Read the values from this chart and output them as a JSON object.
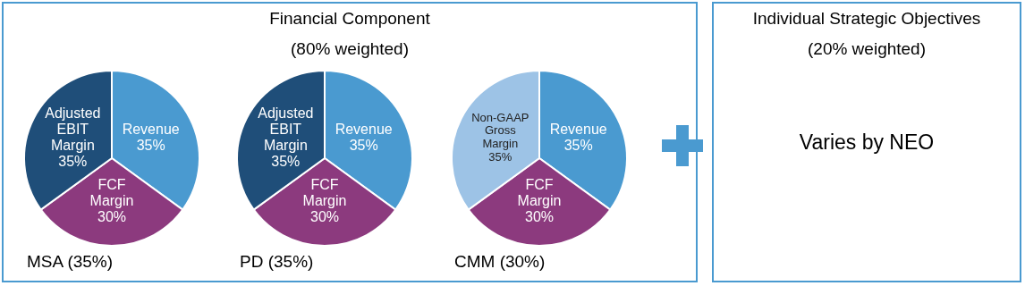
{
  "chart_data": [
    {
      "type": "other",
      "title": "Financial Component",
      "subtitle": "(80% weighted)"
    },
    {
      "type": "pie",
      "xlabel": "MSA (35%)",
      "categories": [
        "Revenue",
        "FCF Margin",
        "Adjusted EBIT Margin"
      ],
      "values": [
        35,
        30,
        35
      ],
      "colors": [
        "#4a9ad0",
        "#8c3a7e",
        "#1f4e79"
      ],
      "value_labels": [
        "35%",
        "30%",
        "35%"
      ]
    },
    {
      "type": "pie",
      "xlabel": "PD (35%)",
      "categories": [
        "Revenue",
        "FCF Margin",
        "Adjusted EBIT Margin"
      ],
      "values": [
        35,
        30,
        35
      ],
      "colors": [
        "#4a9ad0",
        "#8c3a7e",
        "#1f4e79"
      ],
      "value_labels": [
        "35%",
        "30%",
        "35%"
      ]
    },
    {
      "type": "pie",
      "xlabel": "CMM (30%)",
      "categories": [
        "Revenue",
        "FCF Margin",
        "Non-GAAP Gross Margin"
      ],
      "values": [
        35,
        30,
        35
      ],
      "colors": [
        "#4a9ad0",
        "#8c3a7e",
        "#9dc3e6"
      ],
      "value_labels": [
        "35%",
        "30%",
        "35%"
      ]
    },
    {
      "type": "other",
      "title": "Individual Strategic Objectives",
      "subtitle": "(20% weighted)",
      "annotations": [
        "Varies by NEO"
      ]
    }
  ]
}
